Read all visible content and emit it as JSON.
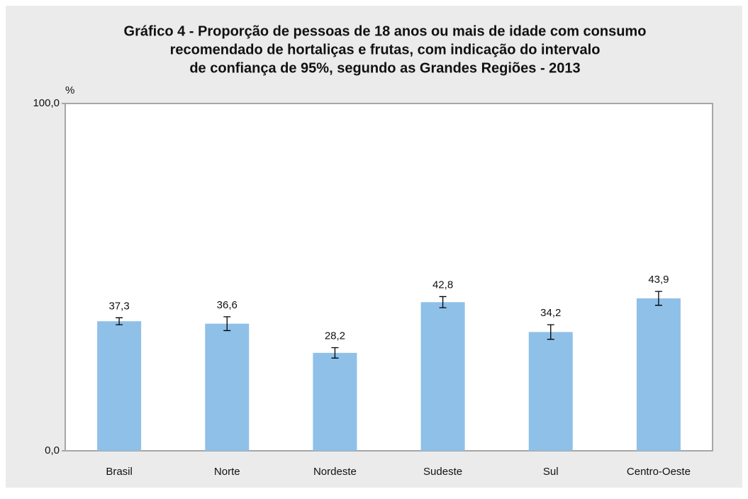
{
  "chart_data": {
    "type": "bar",
    "title": [
      "Gráfico 4 - Proporção de pessoas de 18 anos ou mais de idade com consumo",
      "recomendado de hortaliças e frutas, com indicação do intervalo",
      "de confiança de 95%, segundo as Grandes Regiões - 2013"
    ],
    "y_label": "%",
    "categories": [
      "Brasil",
      "Norte",
      "Nordeste",
      "Sudeste",
      "Sul",
      "Centro-Oeste"
    ],
    "values": [
      37.3,
      36.6,
      28.2,
      42.8,
      34.2,
      43.9
    ],
    "value_labels": [
      "37,3",
      "36,6",
      "28,2",
      "42,8",
      "34,2",
      "43,9"
    ],
    "errors": [
      1.0,
      2.0,
      1.5,
      1.6,
      2.1,
      2.0
    ],
    "color": "#8fc0e8",
    "ylim": [
      0,
      100
    ],
    "yticks": [
      {
        "value": 0,
        "label": "0,0"
      },
      {
        "value": 100,
        "label": "100,0"
      }
    ]
  }
}
